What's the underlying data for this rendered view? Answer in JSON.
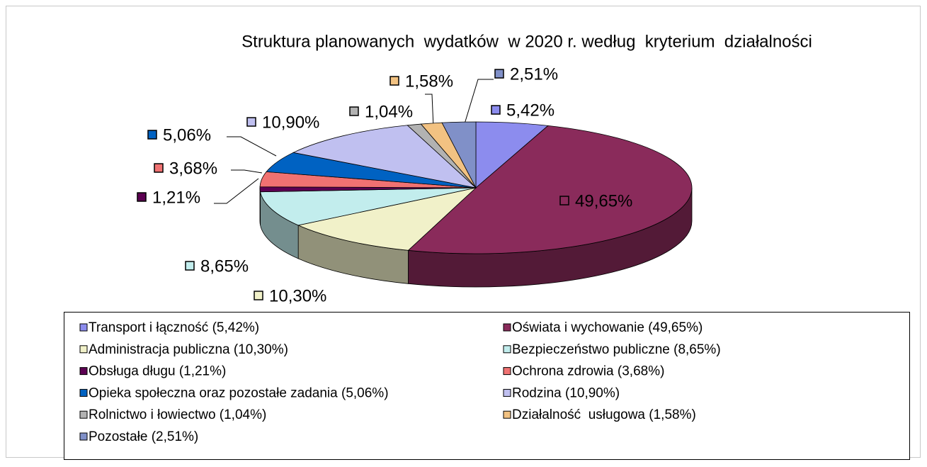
{
  "chart_data": {
    "type": "pie3d",
    "title": "Struktura planowanych  wydatków  w 2020 r. według  kryterium  działalności",
    "categories": [
      "Transport i łączność (5,42%)",
      "Oświata i wychowanie (49,65%)",
      "Administracja publiczna (10,30%)",
      "Bezpieczeństwo publiczne (8,65%)",
      "Obsługa długu (1,21%)",
      "Ochrona zdrowia (3,68%)",
      "Opieka społeczna oraz pozostałe zadania (5,06%)",
      "Rodzina (10,90%)",
      "Rolnictwo i łowiectwo (1,04%)",
      "Działalność  usługowa (1,58%)",
      "Pozostałe (2,51%)"
    ],
    "values": [
      5.42,
      49.65,
      10.3,
      8.65,
      1.21,
      3.68,
      5.06,
      10.9,
      1.04,
      1.58,
      2.51
    ],
    "value_labels": [
      "5,42%",
      "49,65%",
      "10,30%",
      "8,65%",
      "1,21%",
      "3,68%",
      "5,06%",
      "10,90%",
      "1,04%",
      "1,58%",
      "2,51%"
    ],
    "colors": [
      "#8c8cee",
      "#8a2b5b",
      "#f1f1c9",
      "#c2eded",
      "#5c0052",
      "#f07272",
      "#0062c2",
      "#c0c0f0",
      "#b2b2b2",
      "#f2c282",
      "#8090c8"
    ],
    "legend": "bottom"
  }
}
